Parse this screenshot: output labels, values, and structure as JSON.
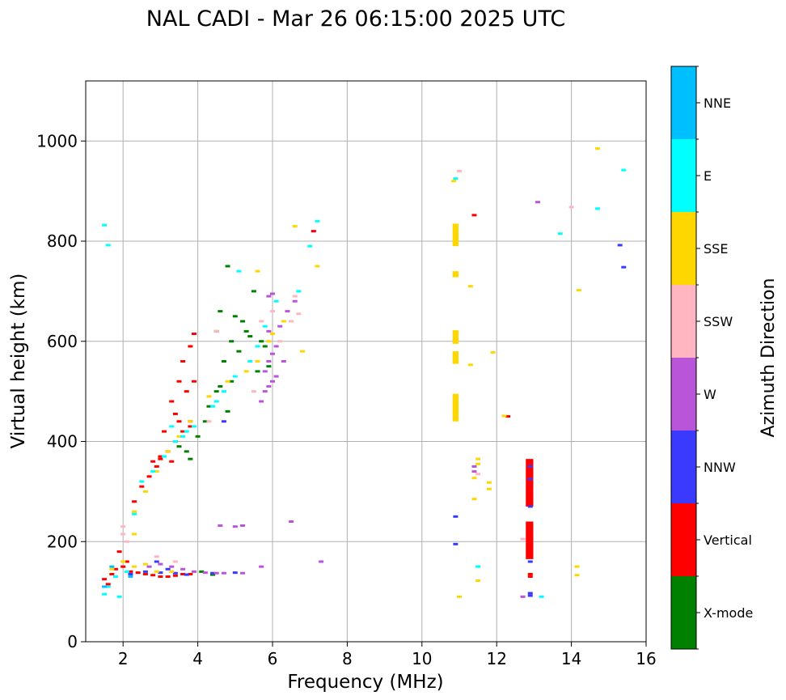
{
  "chart_data": {
    "type": "scatter",
    "title": "NAL CADI - Mar 26 06:15:00 2025 UTC",
    "xlabel": "Frequency (MHz)",
    "ylabel": "Virtual height (km)",
    "xlim": [
      1,
      16
    ],
    "ylim": [
      0,
      1120
    ],
    "x_ticks": [
      2,
      4,
      6,
      8,
      10,
      12,
      14,
      16
    ],
    "y_ticks": [
      0,
      200,
      400,
      600,
      800,
      1000
    ],
    "grid": true,
    "colorbar": {
      "label": "Azimuth Direction",
      "categories": [
        {
          "name": "X-mode",
          "color": "#008000"
        },
        {
          "name": "Vertical",
          "color": "#ff0000"
        },
        {
          "name": "NNW",
          "color": "#3a3aff"
        },
        {
          "name": "W",
          "color": "#b855d8"
        },
        {
          "name": "SSW",
          "color": "#ffb6c1"
        },
        {
          "name": "SSE",
          "color": "#ffd700"
        },
        {
          "name": "E",
          "color": "#00ffff"
        },
        {
          "name": "NNE",
          "color": "#00bfff"
        }
      ]
    },
    "series": [
      {
        "name": "X-mode",
        "points": [
          [
            4.4,
            135
          ],
          [
            4.2,
            440
          ],
          [
            4.5,
            620
          ],
          [
            4.6,
            660
          ],
          [
            4.7,
            560
          ],
          [
            4.9,
            600
          ],
          [
            5.1,
            580
          ],
          [
            5.3,
            620
          ],
          [
            5.5,
            700
          ],
          [
            4.5,
            500
          ],
          [
            4.8,
            460
          ],
          [
            5.6,
            540
          ],
          [
            5.8,
            590
          ],
          [
            4.3,
            470
          ],
          [
            4.6,
            510
          ],
          [
            3.5,
            390
          ],
          [
            3.7,
            380
          ],
          [
            4.0,
            410
          ],
          [
            5.0,
            650
          ],
          [
            4.8,
            750
          ],
          [
            5.4,
            610
          ],
          [
            5.9,
            550
          ],
          [
            4.4,
            134
          ],
          [
            4.1,
            140
          ],
          [
            3.8,
            365
          ],
          [
            5.2,
            640
          ],
          [
            4.9,
            520
          ],
          [
            5.7,
            600
          ]
        ]
      },
      {
        "name": "Vertical",
        "points": [
          [
            1.5,
            125
          ],
          [
            1.7,
            135
          ],
          [
            1.8,
            145
          ],
          [
            2.0,
            150
          ],
          [
            2.2,
            140
          ],
          [
            2.4,
            138
          ],
          [
            2.6,
            135
          ],
          [
            2.8,
            133
          ],
          [
            3.0,
            130
          ],
          [
            3.2,
            130
          ],
          [
            3.4,
            132
          ],
          [
            3.6,
            135
          ],
          [
            3.8,
            135
          ],
          [
            2.3,
            280
          ],
          [
            2.5,
            310
          ],
          [
            2.7,
            330
          ],
          [
            2.9,
            350
          ],
          [
            3.0,
            365
          ],
          [
            3.2,
            380
          ],
          [
            3.4,
            400
          ],
          [
            3.6,
            420
          ],
          [
            3.8,
            440
          ],
          [
            3.1,
            420
          ],
          [
            3.3,
            480
          ],
          [
            3.5,
            520
          ],
          [
            3.6,
            560
          ],
          [
            3.8,
            590
          ],
          [
            3.9,
            615
          ],
          [
            3.4,
            455
          ],
          [
            3.7,
            500
          ],
          [
            3.3,
            360
          ],
          [
            3.0,
            370
          ],
          [
            3.8,
            430
          ],
          [
            3.5,
            440
          ],
          [
            2.8,
            360
          ],
          [
            3.9,
            520
          ],
          [
            1.9,
            180
          ],
          [
            1.6,
            115
          ],
          [
            2.1,
            160
          ],
          [
            7.1,
            820
          ],
          [
            11.4,
            852
          ],
          [
            12.3,
            450
          ],
          [
            12.9,
            130
          ],
          [
            12.9,
            135
          ]
        ],
        "rects": [
          [
            12.78,
            165,
            12.98,
            240
          ],
          [
            12.78,
            270,
            12.98,
            365
          ]
        ]
      },
      {
        "name": "NNW",
        "points": [
          [
            2.2,
            135
          ],
          [
            2.6,
            140
          ],
          [
            3.0,
            138
          ],
          [
            3.4,
            137
          ],
          [
            3.7,
            134
          ],
          [
            4.4,
            137
          ],
          [
            5.0,
            138
          ],
          [
            2.9,
            160
          ],
          [
            3.2,
            145
          ],
          [
            15.3,
            792
          ],
          [
            15.4,
            748
          ],
          [
            10.9,
            195
          ],
          [
            10.9,
            250
          ],
          [
            12.9,
            160
          ],
          [
            12.9,
            270
          ],
          [
            12.9,
            325
          ],
          [
            12.9,
            350
          ],
          [
            12.9,
            92
          ],
          [
            12.9,
            97
          ],
          [
            4.7,
            440
          ]
        ]
      },
      {
        "name": "W",
        "points": [
          [
            2.7,
            150
          ],
          [
            3.0,
            155
          ],
          [
            3.3,
            150
          ],
          [
            3.6,
            145
          ],
          [
            3.9,
            140
          ],
          [
            4.2,
            138
          ],
          [
            4.5,
            137
          ],
          [
            4.7,
            137
          ],
          [
            5.2,
            137
          ],
          [
            5.7,
            150
          ],
          [
            5.8,
            500
          ],
          [
            5.9,
            510
          ],
          [
            6.0,
            520
          ],
          [
            6.1,
            530
          ],
          [
            5.8,
            540
          ],
          [
            5.9,
            560
          ],
          [
            6.0,
            575
          ],
          [
            6.1,
            590
          ],
          [
            5.9,
            620
          ],
          [
            6.2,
            630
          ],
          [
            6.4,
            660
          ],
          [
            6.6,
            680
          ],
          [
            5.9,
            690
          ],
          [
            6.5,
            240
          ],
          [
            5.2,
            232
          ],
          [
            5.0,
            230
          ],
          [
            4.6,
            232
          ],
          [
            6.0,
            695
          ],
          [
            13.1,
            878
          ],
          [
            12.7,
            90
          ],
          [
            11.4,
            340
          ],
          [
            11.4,
            350
          ],
          [
            5.7,
            480
          ],
          [
            6.3,
            560
          ],
          [
            7.3,
            160
          ]
        ]
      },
      {
        "name": "SSW",
        "points": [
          [
            2.0,
            230
          ],
          [
            2.0,
            215
          ],
          [
            2.1,
            200
          ],
          [
            2.9,
            170
          ],
          [
            3.4,
            160
          ],
          [
            4.3,
            440
          ],
          [
            5.5,
            500
          ],
          [
            6.2,
            600
          ],
          [
            6.5,
            640
          ],
          [
            6.7,
            655
          ],
          [
            6.6,
            690
          ],
          [
            14.0,
            868
          ],
          [
            12.7,
            205
          ],
          [
            11.0,
            940
          ],
          [
            11.5,
            335
          ],
          [
            4.5,
            620
          ],
          [
            5.7,
            640
          ],
          [
            6.0,
            660
          ]
        ]
      },
      {
        "name": "SSE",
        "points": [
          [
            1.7,
            145
          ],
          [
            2.0,
            160
          ],
          [
            2.3,
            150
          ],
          [
            2.6,
            155
          ],
          [
            2.9,
            140
          ],
          [
            3.3,
            140
          ],
          [
            2.3,
            260
          ],
          [
            2.6,
            300
          ],
          [
            2.9,
            340
          ],
          [
            3.2,
            380
          ],
          [
            3.5,
            410
          ],
          [
            3.8,
            440
          ],
          [
            4.3,
            490
          ],
          [
            4.8,
            520
          ],
          [
            5.3,
            540
          ],
          [
            5.6,
            560
          ],
          [
            5.9,
            600
          ],
          [
            6.3,
            640
          ],
          [
            6.8,
            580
          ],
          [
            5.6,
            740
          ],
          [
            6.6,
            830
          ],
          [
            7.2,
            750
          ],
          [
            10.85,
            920
          ],
          [
            11.0,
            90
          ],
          [
            11.3,
            710
          ],
          [
            11.3,
            553
          ],
          [
            11.4,
            285
          ],
          [
            11.4,
            327
          ],
          [
            11.5,
            355
          ],
          [
            11.5,
            365
          ],
          [
            11.8,
            305
          ],
          [
            11.8,
            318
          ],
          [
            11.9,
            578
          ],
          [
            12.2,
            451
          ],
          [
            14.7,
            985
          ],
          [
            14.2,
            702
          ],
          [
            14.15,
            150
          ],
          [
            14.15,
            133
          ],
          [
            11.5,
            122
          ],
          [
            2.3,
            215
          ],
          [
            6.0,
            615
          ]
        ],
        "rects": [
          [
            10.82,
            440,
            10.98,
            495
          ],
          [
            10.82,
            555,
            10.98,
            580
          ],
          [
            10.82,
            595,
            10.98,
            622
          ],
          [
            10.82,
            728,
            10.98,
            740
          ],
          [
            10.82,
            790,
            10.98,
            835
          ]
        ]
      },
      {
        "name": "E",
        "points": [
          [
            1.5,
            95
          ],
          [
            1.6,
            110
          ],
          [
            1.8,
            130
          ],
          [
            1.5,
            832
          ],
          [
            1.6,
            792
          ],
          [
            2.1,
            140
          ],
          [
            2.3,
            255
          ],
          [
            2.5,
            320
          ],
          [
            2.8,
            340
          ],
          [
            3.1,
            370
          ],
          [
            3.4,
            400
          ],
          [
            3.6,
            410
          ],
          [
            3.9,
            430
          ],
          [
            4.4,
            470
          ],
          [
            4.7,
            500
          ],
          [
            5.0,
            530
          ],
          [
            5.4,
            560
          ],
          [
            5.6,
            590
          ],
          [
            5.8,
            630
          ],
          [
            6.1,
            680
          ],
          [
            6.7,
            700
          ],
          [
            7.2,
            840
          ],
          [
            7.0,
            790
          ],
          [
            1.9,
            90
          ],
          [
            13.7,
            815
          ],
          [
            15.4,
            942
          ],
          [
            14.7,
            865
          ],
          [
            11.5,
            150
          ],
          [
            13.2,
            90
          ],
          [
            10.9,
            925
          ],
          [
            5.1,
            740
          ],
          [
            4.5,
            480
          ],
          [
            3.7,
            420
          ],
          [
            3.3,
            430
          ]
        ]
      },
      {
        "name": "NNE",
        "points": [
          [
            1.5,
            110
          ],
          [
            1.7,
            150
          ],
          [
            2.2,
            130
          ]
        ]
      }
    ]
  }
}
